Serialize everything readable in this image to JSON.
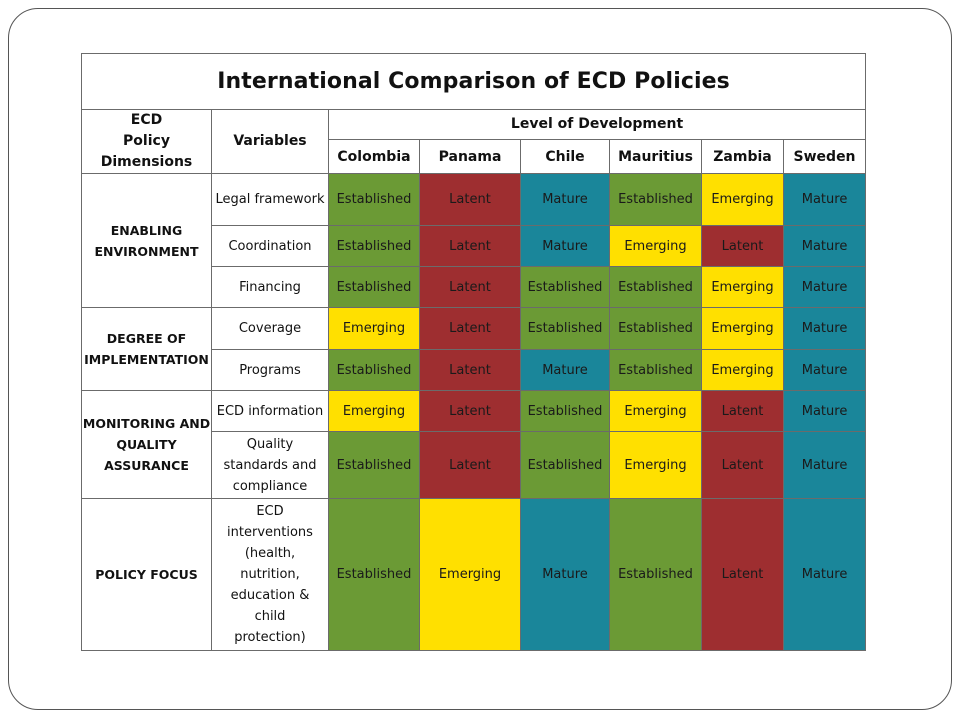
{
  "title": "International Comparison of ECD Policies",
  "headers": {
    "dimensions": "ECD Policy Dimensions",
    "dimensions_line1": "ECD",
    "dimensions_line2": "Policy Dimensions",
    "variables": "Variables",
    "level": "Level of Development"
  },
  "countries": [
    "Colombia",
    "Panama",
    "Chile",
    "Mauritius",
    "Zambia",
    "Sweden"
  ],
  "groups": [
    {
      "label_lines": [
        "ENABLING",
        "ENVIRONMENT"
      ]
    },
    {
      "label_lines": [
        "DEGREE OF",
        "IMPLEMENTATION"
      ]
    },
    {
      "label_lines": [
        "MONITORING AND",
        "QUALITY",
        "ASSURANCE"
      ]
    },
    {
      "label_lines": [
        "POLICY FOCUS"
      ]
    }
  ],
  "rows": [
    {
      "variable_lines": [
        "Legal framework"
      ],
      "values": [
        "Established",
        "Latent",
        "Mature",
        "Established",
        "Emerging",
        "Mature"
      ]
    },
    {
      "variable_lines": [
        "Coordination"
      ],
      "values": [
        "Established",
        "Latent",
        "Mature",
        "Emerging",
        "Latent",
        "Mature"
      ]
    },
    {
      "variable_lines": [
        "Financing"
      ],
      "values": [
        "Established",
        "Latent",
        "Established",
        "Established",
        "Emerging",
        "Mature"
      ]
    },
    {
      "variable_lines": [
        "Coverage"
      ],
      "values": [
        "Emerging",
        "Latent",
        "Established",
        "Established",
        "Emerging",
        "Mature"
      ]
    },
    {
      "variable_lines": [
        "Programs"
      ],
      "values": [
        "Established",
        "Latent",
        "Mature",
        "Established",
        "Emerging",
        "Mature"
      ]
    },
    {
      "variable_lines": [
        "ECD information"
      ],
      "values": [
        "Emerging",
        "Latent",
        "Established",
        "Emerging",
        "Latent",
        "Mature"
      ]
    },
    {
      "variable_lines": [
        "Quality",
        "standards and",
        "compliance"
      ],
      "values": [
        "Established",
        "Latent",
        "Established",
        "Emerging",
        "Latent",
        "Mature"
      ]
    },
    {
      "variable_lines": [
        "ECD",
        "interventions",
        "(health,",
        "nutrition,",
        "education &",
        "child",
        "protection)"
      ],
      "values": [
        "Established",
        "Emerging",
        "Mature",
        "Established",
        "Latent",
        "Mature"
      ]
    }
  ],
  "level_colors": {
    "Established": "#6b9a35",
    "Latent": "#9e2e30",
    "Mature": "#1a869a",
    "Emerging": "#ffe000"
  }
}
